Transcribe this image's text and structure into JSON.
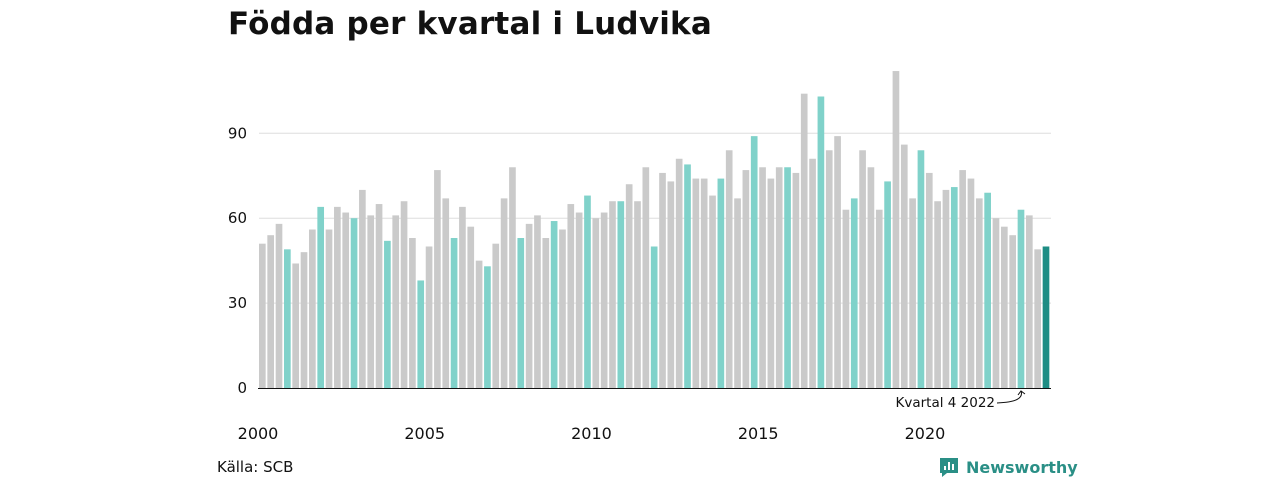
{
  "title": "Födda per kvartal i Ludvika",
  "source": "Källa: SCB",
  "brand": {
    "name": "Newsworthy",
    "icon": "newsworthy-chart-icon"
  },
  "colors": {
    "default": "#cacaca",
    "q4": "#80d2ca",
    "latest": "#1e8d84",
    "grid": "#dedede",
    "axis": "#111111",
    "brand": "#2a8f86"
  },
  "chart_data": {
    "type": "bar",
    "title": "Födda per kvartal i Ludvika",
    "xlabel": "",
    "ylabel": "",
    "ylim": [
      0,
      113
    ],
    "y_ticks": [
      0,
      30,
      60,
      90
    ],
    "x_tick_labels": [
      {
        "label": "2000",
        "index": 0
      },
      {
        "label": "2005",
        "index": 20
      },
      {
        "label": "2010",
        "index": 40
      },
      {
        "label": "2015",
        "index": 60
      },
      {
        "label": "2020",
        "index": 80
      }
    ],
    "grid": "horizontal",
    "first_period": "2000 kvartal 1",
    "highlight": "every fourth quarter (kvartal 4) in teal, latest bar dark teal",
    "annotation": {
      "text": "Kvartal 4 2022",
      "target_index": 91
    },
    "values": [
      51,
      54,
      58,
      49,
      44,
      48,
      56,
      64,
      56,
      64,
      62,
      60,
      70,
      61,
      65,
      52,
      61,
      66,
      53,
      38,
      50,
      77,
      67,
      53,
      64,
      57,
      45,
      43,
      51,
      67,
      78,
      53,
      58,
      61,
      53,
      59,
      56,
      65,
      62,
      68,
      60,
      62,
      66,
      66,
      72,
      66,
      78,
      50,
      76,
      73,
      81,
      79,
      74,
      74,
      68,
      74,
      84,
      67,
      77,
      89,
      78,
      74,
      78,
      78,
      76,
      104,
      81,
      103,
      84,
      89,
      63,
      67,
      84,
      78,
      63,
      73,
      112,
      86,
      67,
      84,
      76,
      66,
      70,
      71,
      77,
      74,
      67,
      69,
      60,
      57,
      54,
      63,
      61,
      49,
      50
    ]
  }
}
